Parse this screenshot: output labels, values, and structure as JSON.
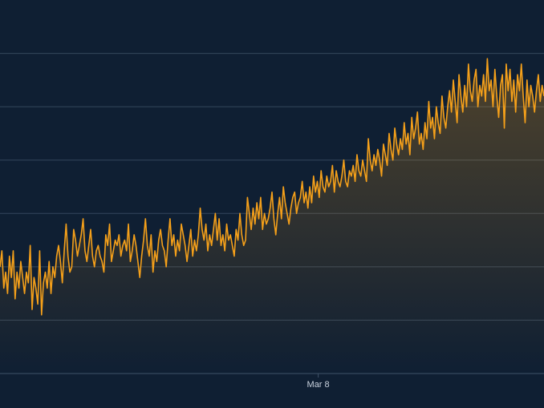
{
  "colors": {
    "background": "#0f1f33",
    "gridline": "#34475c",
    "series_line": "#f5a01a",
    "area_fill_top": "#f5a01a",
    "axis_line": "#3f5368",
    "tick_label": "#c9d2de"
  },
  "chart_data": {
    "type": "area",
    "title": "",
    "xlabel": "",
    "ylabel": "",
    "grid": true,
    "legend": "none",
    "x_ticks": [
      {
        "label": "Mar 8",
        "index": 179
      }
    ],
    "y_gridlines": [
      1,
      2,
      3,
      4,
      5,
      6
    ],
    "ylim": [
      0,
      7
    ],
    "series": [
      {
        "values": [
          2.0,
          2.3,
          1.6,
          1.9,
          1.5,
          2.2,
          1.8,
          2.3,
          1.4,
          1.9,
          1.6,
          2.1,
          1.8,
          1.5,
          1.9,
          1.7,
          2.4,
          1.2,
          1.8,
          1.6,
          1.3,
          2.3,
          1.1,
          1.7,
          1.9,
          1.6,
          2.1,
          1.5,
          2.0,
          1.8,
          2.2,
          2.4,
          2.1,
          1.7,
          2.3,
          2.8,
          2.2,
          1.9,
          2.0,
          2.7,
          2.5,
          2.2,
          2.4,
          2.6,
          2.9,
          2.3,
          2.1,
          2.4,
          2.7,
          2.2,
          2.0,
          2.3,
          2.4,
          2.2,
          2.1,
          1.9,
          2.6,
          2.4,
          2.8,
          2.1,
          2.3,
          2.5,
          2.4,
          2.6,
          2.2,
          2.4,
          2.5,
          2.3,
          2.8,
          2.1,
          2.3,
          2.6,
          2.4,
          2.1,
          1.8,
          2.2,
          2.5,
          2.9,
          2.4,
          2.2,
          2.6,
          1.9,
          2.3,
          2.1,
          2.5,
          2.7,
          2.4,
          2.3,
          2.0,
          2.5,
          2.9,
          2.4,
          2.6,
          2.2,
          2.5,
          2.3,
          2.8,
          2.6,
          2.4,
          2.1,
          2.4,
          2.7,
          2.2,
          2.5,
          2.3,
          2.6,
          3.1,
          2.7,
          2.5,
          2.8,
          2.3,
          2.6,
          2.4,
          2.7,
          3.0,
          2.5,
          2.9,
          2.4,
          2.6,
          2.3,
          2.8,
          2.5,
          2.6,
          2.4,
          2.2,
          2.7,
          2.5,
          3.0,
          2.6,
          2.4,
          2.5,
          3.3,
          3.0,
          2.7,
          3.1,
          2.8,
          3.2,
          2.9,
          3.3,
          2.7,
          3.0,
          2.8,
          2.9,
          3.1,
          3.4,
          2.9,
          2.6,
          3.0,
          3.3,
          2.9,
          3.5,
          3.2,
          3.0,
          2.8,
          3.1,
          3.3,
          3.4,
          3.0,
          3.2,
          3.3,
          3.6,
          3.2,
          3.4,
          3.1,
          3.5,
          3.2,
          3.7,
          3.4,
          3.6,
          3.3,
          3.8,
          3.5,
          3.4,
          3.7,
          3.5,
          3.6,
          3.9,
          3.4,
          3.8,
          3.6,
          3.5,
          3.7,
          4.0,
          3.6,
          3.5,
          3.8,
          3.7,
          3.9,
          3.6,
          4.1,
          3.8,
          3.7,
          4.0,
          3.8,
          3.6,
          4.4,
          4.0,
          3.8,
          4.1,
          3.9,
          4.2,
          4.0,
          3.7,
          4.3,
          4.1,
          3.9,
          4.5,
          4.2,
          4.0,
          4.6,
          4.3,
          4.1,
          4.4,
          4.2,
          4.7,
          4.3,
          4.5,
          4.1,
          4.8,
          4.4,
          4.6,
          4.9,
          4.3,
          4.5,
          4.2,
          4.7,
          4.4,
          5.1,
          4.6,
          4.8,
          4.4,
          5.0,
          4.7,
          4.5,
          5.2,
          4.8,
          4.6,
          5.0,
          5.3,
          4.9,
          5.5,
          5.1,
          4.7,
          5.6,
          5.2,
          4.9,
          5.4,
          5.0,
          5.8,
          5.3,
          5.1,
          5.5,
          5.7,
          5.0,
          5.4,
          5.2,
          5.6,
          5.1,
          5.9,
          5.3,
          5.5,
          5.0,
          5.7,
          5.2,
          4.8,
          5.4,
          5.6,
          4.6,
          5.8,
          5.3,
          5.7,
          5.1,
          5.5,
          4.9,
          5.6,
          5.3,
          5.8,
          5.2,
          4.7,
          5.5,
          5.0,
          5.4,
          5.2,
          4.9,
          5.3,
          5.6,
          5.1,
          5.4,
          5.2
        ],
        "index_range": [
          0,
          306
        ]
      }
    ]
  }
}
